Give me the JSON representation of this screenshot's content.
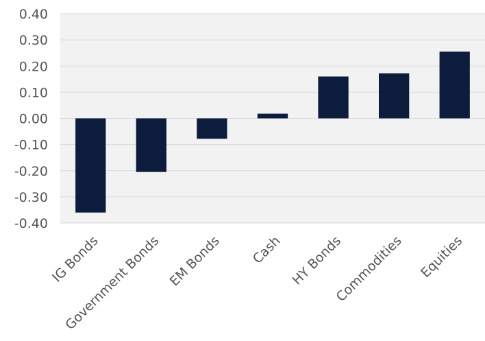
{
  "chart_data": {
    "type": "bar",
    "categories": [
      "IG Bonds",
      "Government Bonds",
      "EM Bonds",
      "Cash",
      "HY Bonds",
      "Commodities",
      "Equities"
    ],
    "values": [
      -0.36,
      -0.205,
      -0.078,
      0.018,
      0.16,
      0.172,
      0.255
    ],
    "y_ticks": [
      "0.40",
      "0.30",
      "0.20",
      "0.10",
      "0.00",
      "-0.10",
      "-0.20",
      "-0.30",
      "-0.40"
    ],
    "ylim": [
      -0.4,
      0.4
    ],
    "grid": true,
    "colors": {
      "bar": "#0c1c3c",
      "plot_bg": "#f2f2f2",
      "grid": "#d9d9d9"
    }
  }
}
